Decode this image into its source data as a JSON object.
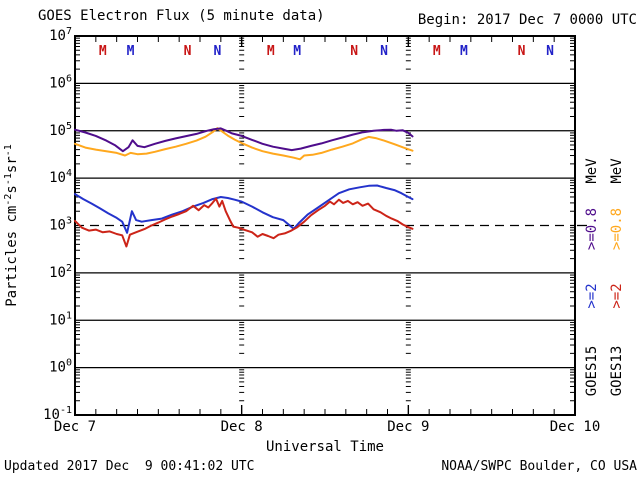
{
  "header": {
    "title": "GOES Electron Flux (5 minute data)",
    "begin_label": "Begin: 2017 Dec 7 0000 UTC"
  },
  "footer": {
    "updated": "Updated 2017 Dec  9 00:41:02 UTC",
    "source": "NOAA/SWPC Boulder, CO USA"
  },
  "chart_data": {
    "type": "line",
    "title": "GOES Electron Flux (5 minute data)",
    "xlabel": "Universal Time",
    "ylabel_parts": [
      [
        "Particles cm",
        "n"
      ],
      [
        "-2",
        "s"
      ],
      [
        "s",
        "n"
      ],
      [
        "-1",
        "s"
      ],
      [
        "sr",
        "n"
      ],
      [
        "-1",
        "s"
      ]
    ],
    "x_range_hours": [
      0,
      72
    ],
    "x_tick_labels": [
      {
        "label": "Dec 7",
        "t": 0
      },
      {
        "label": "Dec 8",
        "t": 24
      },
      {
        "label": "Dec 9",
        "t": 48
      },
      {
        "label": "Dec 10",
        "t": 72
      }
    ],
    "x_minor_tick_hours": 3,
    "y_log_exponent_range": [
      -1,
      7
    ],
    "y_tick_exponents": [
      7,
      6,
      5,
      4,
      3,
      2,
      1,
      0,
      -1
    ],
    "grid_solid_exponents": [
      6,
      5,
      4,
      2,
      1,
      0
    ],
    "day_gridlines_t": [
      24,
      48
    ],
    "threshold": {
      "value": 1000,
      "style": "dashed"
    },
    "colors": {
      "goes15_08": "#4F0D8C",
      "goes13_08": "#FFA81E",
      "goes15_2": "#2433CC",
      "goes13_2": "#CC2418",
      "marker_red": "#C81616",
      "marker_blue": "#2222C8",
      "axis": "#000000"
    },
    "series": [
      {
        "name": "GOES13 >=0.8 MeV",
        "color": "#FFA81E",
        "points": [
          [
            0,
            53000.0
          ],
          [
            1.5,
            44000.0
          ],
          [
            3,
            40000.0
          ],
          [
            4.5,
            37000.0
          ],
          [
            6,
            34000.0
          ],
          [
            7.2,
            30000.0
          ],
          [
            8,
            34000.0
          ],
          [
            9,
            32000.0
          ],
          [
            10.3,
            33000.0
          ],
          [
            11.5,
            36000.0
          ],
          [
            13,
            41000.0
          ],
          [
            14.5,
            46000.0
          ],
          [
            16,
            53000.0
          ],
          [
            17.5,
            62000.0
          ],
          [
            18.8,
            75000.0
          ],
          [
            19.8,
            93000.0
          ],
          [
            20.5,
            113000.0
          ],
          [
            21.2,
            96000.0
          ],
          [
            22,
            79000.0
          ],
          [
            23,
            65000.0
          ],
          [
            24,
            55000.0
          ],
          [
            25.5,
            44000.0
          ],
          [
            27,
            37000.0
          ],
          [
            28.5,
            33000.0
          ],
          [
            30,
            30000.0
          ],
          [
            31.5,
            27000.0
          ],
          [
            32.4,
            25000.0
          ],
          [
            33,
            30000.0
          ],
          [
            34.2,
            31000.0
          ],
          [
            35.5,
            34000.0
          ],
          [
            37,
            40000.0
          ],
          [
            38.5,
            46000.0
          ],
          [
            40,
            54000.0
          ],
          [
            41.3,
            66000.0
          ],
          [
            42.3,
            74000.0
          ],
          [
            43.3,
            70000.0
          ],
          [
            44.5,
            62000.0
          ],
          [
            46,
            52000.0
          ],
          [
            47.3,
            44000.0
          ],
          [
            48.6,
            38000.0
          ]
        ]
      },
      {
        "name": "GOES15 >=0.8 MeV",
        "color": "#4F0D8C",
        "points": [
          [
            0,
            105000.0
          ],
          [
            1.5,
            92000.0
          ],
          [
            3,
            78000.0
          ],
          [
            4.5,
            62000.0
          ],
          [
            5.8,
            49000.0
          ],
          [
            6.9,
            37000.0
          ],
          [
            7.7,
            45000.0
          ],
          [
            8.3,
            63000.0
          ],
          [
            9,
            48000.0
          ],
          [
            10,
            45000.0
          ],
          [
            11.5,
            53000.0
          ],
          [
            13,
            61000.0
          ],
          [
            14.5,
            69000.0
          ],
          [
            16,
            77000.0
          ],
          [
            17.5,
            86000.0
          ],
          [
            19,
            100000.0
          ],
          [
            20,
            108000.0
          ],
          [
            21,
            112000.0
          ],
          [
            21.8,
            100000.0
          ],
          [
            22.6,
            88000.0
          ],
          [
            24,
            78000.0
          ],
          [
            25.5,
            64000.0
          ],
          [
            27,
            53000.0
          ],
          [
            28.5,
            46000.0
          ],
          [
            30,
            42000.0
          ],
          [
            31.2,
            39000.0
          ],
          [
            32.5,
            42000.0
          ],
          [
            34,
            48000.0
          ],
          [
            35.5,
            54000.0
          ],
          [
            37,
            63000.0
          ],
          [
            38.5,
            72000.0
          ],
          [
            40,
            83000.0
          ],
          [
            41.5,
            93000.0
          ],
          [
            43,
            100000.0
          ],
          [
            44.5,
            104000.0
          ],
          [
            45.5,
            105000.0
          ],
          [
            46.3,
            100000.0
          ],
          [
            47.2,
            102000.0
          ],
          [
            48,
            90000.0
          ],
          [
            48.6,
            76000.0
          ]
        ]
      },
      {
        "name": "GOES15 >=2 MeV",
        "color": "#2433CC",
        "points": [
          [
            0,
            4600.0
          ],
          [
            1.2,
            3600.0
          ],
          [
            2.4,
            2900.0
          ],
          [
            3.6,
            2300.0
          ],
          [
            4.8,
            1800.0
          ],
          [
            6,
            1450.0
          ],
          [
            6.8,
            1200.0
          ],
          [
            7.5,
            700.0
          ],
          [
            8.2,
            2000.0
          ],
          [
            8.8,
            1300.0
          ],
          [
            9.6,
            1200.0
          ],
          [
            11,
            1300.0
          ],
          [
            12.5,
            1400.0
          ],
          [
            14,
            1700.0
          ],
          [
            15.5,
            2000.0
          ],
          [
            17,
            2500.0
          ],
          [
            18.5,
            3000.0
          ],
          [
            19.8,
            3600.0
          ],
          [
            21,
            4000.0
          ],
          [
            22,
            3800.0
          ],
          [
            23,
            3500.0
          ],
          [
            24,
            3200.0
          ],
          [
            25.5,
            2500.0
          ],
          [
            27,
            1900.0
          ],
          [
            28.5,
            1500.0
          ],
          [
            30,
            1300.0
          ],
          [
            31.5,
            850.0
          ],
          [
            32.3,
            1150.0
          ],
          [
            33.5,
            1700.0
          ],
          [
            35,
            2400.0
          ],
          [
            36.5,
            3400.0
          ],
          [
            38,
            4800.0
          ],
          [
            39.5,
            5800.0
          ],
          [
            41,
            6400.0
          ],
          [
            42.3,
            6900.0
          ],
          [
            43.5,
            7000.0
          ],
          [
            44.8,
            6200.0
          ],
          [
            46,
            5600.0
          ],
          [
            47,
            4800.0
          ],
          [
            48,
            4000.0
          ],
          [
            48.6,
            3600.0
          ]
        ]
      },
      {
        "name": "GOES13 >=2 MeV",
        "color": "#CC2418",
        "points": [
          [
            0,
            1250.0
          ],
          [
            1,
            900.0
          ],
          [
            2,
            780.0
          ],
          [
            3,
            820.0
          ],
          [
            4,
            720.0
          ],
          [
            5,
            750.0
          ],
          [
            6,
            660.0
          ],
          [
            6.8,
            620.0
          ],
          [
            7.4,
            360.0
          ],
          [
            7.9,
            640.0
          ],
          [
            9,
            740.0
          ],
          [
            10,
            840.0
          ],
          [
            11,
            1000.0
          ],
          [
            12,
            1150.0
          ],
          [
            13,
            1350.0
          ],
          [
            14,
            1550.0
          ],
          [
            15,
            1750.0
          ],
          [
            16,
            2000.0
          ],
          [
            17,
            2600.0
          ],
          [
            17.8,
            2100.0
          ],
          [
            18.6,
            2700.0
          ],
          [
            19.2,
            2400.0
          ],
          [
            19.8,
            3000.0
          ],
          [
            20.3,
            3700.0
          ],
          [
            20.8,
            2500.0
          ],
          [
            21.2,
            3300.0
          ],
          [
            21.7,
            2000.0
          ],
          [
            22.3,
            1300.0
          ],
          [
            22.8,
            950.0
          ],
          [
            23.5,
            900.0
          ],
          [
            24.5,
            800.0
          ],
          [
            25.5,
            720.0
          ],
          [
            26.3,
            580.0
          ],
          [
            27,
            660.0
          ],
          [
            27.8,
            600.0
          ],
          [
            28.6,
            540.0
          ],
          [
            29.3,
            640.0
          ],
          [
            30.2,
            680.0
          ],
          [
            31,
            760.0
          ],
          [
            32,
            920.0
          ],
          [
            33,
            1200.0
          ],
          [
            34,
            1650.0
          ],
          [
            35,
            2100.0
          ],
          [
            36,
            2600.0
          ],
          [
            36.7,
            3200.0
          ],
          [
            37.3,
            2800.0
          ],
          [
            38,
            3500.0
          ],
          [
            38.6,
            3000.0
          ],
          [
            39.3,
            3300.0
          ],
          [
            40,
            2800.0
          ],
          [
            40.7,
            3100.0
          ],
          [
            41.4,
            2600.0
          ],
          [
            42.2,
            2900.0
          ],
          [
            43,
            2200.0
          ],
          [
            44,
            1900.0
          ],
          [
            44.8,
            1600.0
          ],
          [
            45.6,
            1400.0
          ],
          [
            46.4,
            1250.0
          ],
          [
            47.2,
            1050.0
          ],
          [
            48,
            920.0
          ],
          [
            48.6,
            850.0
          ]
        ]
      }
    ],
    "event_markers": [
      {
        "label": "M",
        "t": 4.0,
        "color": "#C81616"
      },
      {
        "label": "M",
        "t": 8.0,
        "color": "#2222C8"
      },
      {
        "label": "N",
        "t": 16.2,
        "color": "#C81616"
      },
      {
        "label": "N",
        "t": 20.5,
        "color": "#2222C8"
      },
      {
        "label": "M",
        "t": 28.2,
        "color": "#C81616"
      },
      {
        "label": "M",
        "t": 32.0,
        "color": "#2222C8"
      },
      {
        "label": "N",
        "t": 40.2,
        "color": "#C81616"
      },
      {
        "label": "N",
        "t": 44.5,
        "color": "#2222C8"
      },
      {
        "label": "M",
        "t": 52.1,
        "color": "#C81616"
      },
      {
        "label": "M",
        "t": 56.0,
        "color": "#2222C8"
      },
      {
        "label": "N",
        "t": 64.3,
        "color": "#C81616"
      },
      {
        "label": "N",
        "t": 68.4,
        "color": "#2222C8"
      }
    ],
    "legend": {
      "columns": [
        {
          "satellite": "GOES15",
          "unit": "MeV",
          "energies": [
            {
              "text": ">=0.8",
              "color": "#4F0D8C"
            },
            {
              "text": ">=2",
              "color": "#2433CC"
            }
          ]
        },
        {
          "satellite": "GOES13",
          "unit": "MeV",
          "energies": [
            {
              "text": ">=0.8",
              "color": "#FFA81E"
            },
            {
              "text": ">=2",
              "color": "#CC2418"
            }
          ]
        }
      ]
    },
    "legend_position": "right",
    "grid": true
  }
}
